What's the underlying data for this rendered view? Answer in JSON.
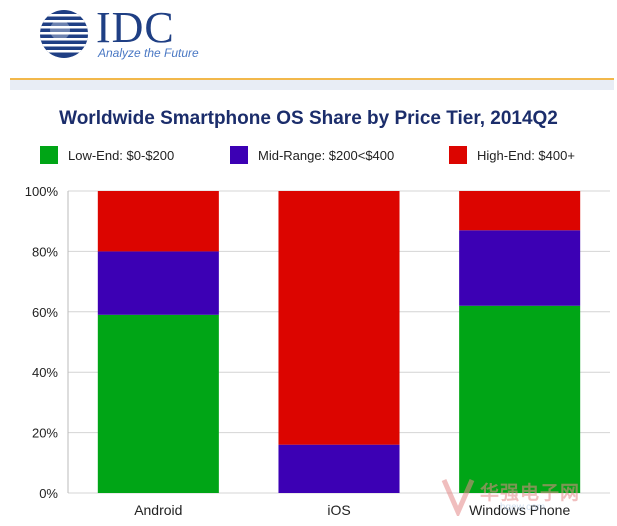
{
  "header": {
    "logo_text": "IDC",
    "tagline": "Analyze the Future"
  },
  "colors": {
    "low": "#00a516",
    "mid": "#3c00b4",
    "high": "#dc0500",
    "brand": "#1f3f84"
  },
  "chart_data": {
    "type": "bar",
    "stacked": true,
    "title": "Worldwide Smartphone OS Share by Price Tier, 2014Q2",
    "categories": [
      "Android",
      "iOS",
      "Windows Phone"
    ],
    "series": [
      {
        "name": "Low-End: $0-$200",
        "color": "#00a516",
        "values": [
          59,
          0,
          62
        ]
      },
      {
        "name": "Mid-Range: $200<$400",
        "color": "#3c00b4",
        "values": [
          21,
          16,
          25
        ]
      },
      {
        "name": "High-End: $400+",
        "color": "#dc0500",
        "values": [
          20,
          84,
          13
        ]
      }
    ],
    "yticks": [
      "0%",
      "20%",
      "40%",
      "60%",
      "80%",
      "100%"
    ],
    "ylim": [
      0,
      100
    ],
    "grid": true,
    "legend_position": "top"
  },
  "watermark": {
    "text": "华强电子网",
    "url": "hqew.com"
  }
}
